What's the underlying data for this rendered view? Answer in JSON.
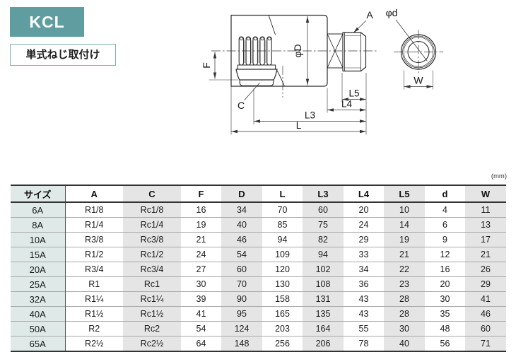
{
  "page": {
    "unit_note": "(mm)"
  },
  "header": {
    "model_code": "KCL",
    "mounting_type": "単式ねじ取付け"
  },
  "colors": {
    "badge_bg": "#5f9da0",
    "badge_text": "#ffffff",
    "accent_border": "#79b1b3",
    "size_col_bg": "#dfeae8",
    "alt_col_bg": "#e4e5e4",
    "row_divider": "#a9a9a9",
    "col_divider": "#555555",
    "heavy_border": "#333333",
    "line": "#2b2b2b"
  },
  "diagram": {
    "labels": {
      "a": "A",
      "phi_d": "φd",
      "f": "F",
      "c": "C",
      "phi_D": "φD",
      "l5": "L5",
      "l4": "L4",
      "l3": "L3",
      "l": "L",
      "w": "W"
    }
  },
  "table": {
    "headers": [
      "サイズ",
      "A",
      "C",
      "F",
      "D",
      "L",
      "L3",
      "L4",
      "L5",
      "d",
      "W"
    ],
    "rows": [
      [
        "6A",
        "R1/8",
        "Rc1/8",
        "16",
        "34",
        "70",
        "60",
        "20",
        "10",
        "4",
        "11"
      ],
      [
        "8A",
        "R1/4",
        "Rc1/4",
        "19",
        "40",
        "85",
        "75",
        "24",
        "14",
        "6",
        "13"
      ],
      [
        "10A",
        "R3/8",
        "Rc3/8",
        "21",
        "46",
        "94",
        "82",
        "29",
        "19",
        "9",
        "17"
      ],
      [
        "15A",
        "R1/2",
        "Rc1/2",
        "24",
        "54",
        "109",
        "94",
        "33",
        "21",
        "12",
        "21"
      ],
      [
        "20A",
        "R3/4",
        "Rc3/4",
        "27",
        "60",
        "120",
        "102",
        "34",
        "22",
        "16",
        "26"
      ],
      [
        "25A",
        "R1",
        "Rc1",
        "30",
        "70",
        "130",
        "108",
        "36",
        "23",
        "20",
        "29"
      ],
      [
        "32A",
        "R1¼",
        "Rc1¼",
        "39",
        "90",
        "158",
        "131",
        "43",
        "28",
        "30",
        "41"
      ],
      [
        "40A",
        "R1½",
        "Rc1½",
        "41",
        "95",
        "165",
        "135",
        "43",
        "28",
        "35",
        "46"
      ],
      [
        "50A",
        "R2",
        "Rc2",
        "54",
        "124",
        "203",
        "164",
        "55",
        "30",
        "48",
        "60"
      ],
      [
        "65A",
        "R2½",
        "Rc2½",
        "64",
        "148",
        "256",
        "206",
        "78",
        "40",
        "56",
        "71"
      ]
    ]
  }
}
